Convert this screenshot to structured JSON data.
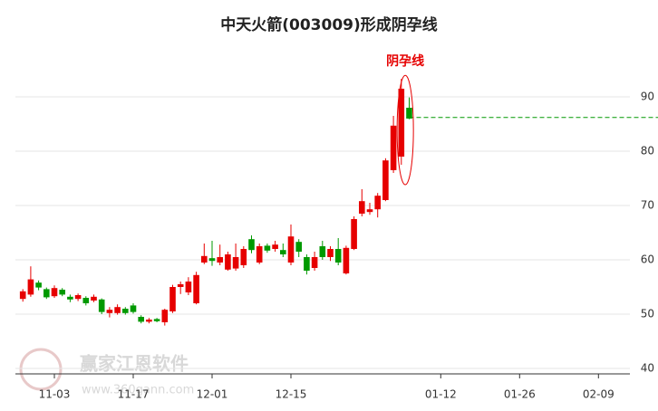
{
  "chart_data": {
    "type": "candlestick",
    "title": "中天火箭(003009)形成阴孕线",
    "categories": [
      null,
      null,
      null,
      null,
      "11-03",
      null,
      null,
      null,
      null,
      null,
      null,
      null,
      null,
      null,
      "11-17",
      null,
      null,
      null,
      null,
      null,
      null,
      null,
      null,
      null,
      "12-01",
      null,
      null,
      null,
      null,
      null,
      null,
      null,
      null,
      null,
      "12-15",
      null,
      null,
      null,
      null,
      null,
      null,
      null,
      null,
      null,
      null,
      null,
      null,
      null,
      null,
      null,
      null,
      null,
      null,
      "01-12",
      null,
      null,
      null,
      null,
      null,
      null,
      null,
      null,
      null,
      "01-26",
      null,
      null,
      null,
      null,
      null,
      null,
      null,
      null,
      null,
      "02-09",
      null,
      null,
      null
    ],
    "open": [
      52.8,
      53.6,
      55.8,
      54.6,
      53.3,
      54.5,
      53.2,
      52.8,
      53.0,
      52.5,
      52.7,
      50.2,
      50.2,
      51.0,
      51.6,
      49.5,
      48.6,
      49.1,
      48.5,
      50.5,
      55.0,
      54.0,
      52.0,
      59.5,
      60.3,
      59.5,
      58.2,
      58.4,
      59.0,
      63.8,
      59.5,
      62.6,
      62.0,
      61.8,
      59.5,
      63.3,
      60.5,
      58.5,
      62.5,
      60.5,
      62.0,
      57.5,
      62.0,
      68.5,
      68.8,
      69.3,
      71.0,
      76.5,
      79.0,
      88.0,
      null,
      null,
      null,
      null,
      null,
      null,
      null,
      null,
      null,
      null,
      null,
      null,
      null,
      null,
      null,
      null,
      null,
      null,
      null,
      null,
      null,
      null,
      null,
      null,
      null,
      null,
      null
    ],
    "high": [
      54.6,
      58.8,
      56.2,
      54.9,
      55.3,
      54.8,
      53.6,
      53.8,
      53.3,
      53.6,
      52.9,
      51.3,
      51.8,
      51.3,
      52.0,
      49.8,
      49.3,
      49.3,
      51.0,
      55.4,
      56.0,
      56.8,
      57.8,
      63.0,
      63.5,
      62.8,
      61.5,
      63.0,
      62.5,
      64.5,
      63.0,
      63.0,
      63.5,
      63.0,
      66.5,
      63.8,
      61.0,
      61.5,
      63.5,
      62.5,
      64.0,
      62.6,
      68.0,
      73.0,
      70.5,
      72.3,
      78.7,
      86.5,
      93.3,
      89.9,
      null,
      null,
      null,
      null,
      null,
      null,
      null,
      null,
      null,
      null,
      null,
      null,
      null,
      null,
      null,
      null,
      null,
      null,
      null,
      null,
      null,
      null,
      null,
      null,
      null,
      null,
      null
    ],
    "low": [
      52.3,
      53.2,
      54.4,
      52.8,
      53.0,
      53.3,
      52.2,
      52.4,
      51.6,
      52.2,
      50.0,
      49.4,
      49.9,
      49.9,
      50.1,
      48.3,
      48.3,
      48.5,
      47.9,
      50.2,
      53.7,
      53.5,
      51.8,
      59.2,
      58.9,
      59.0,
      58.0,
      58.0,
      58.5,
      61.2,
      59.2,
      61.3,
      61.5,
      60.5,
      59.0,
      60.5,
      57.3,
      58.0,
      60.0,
      59.8,
      59.0,
      57.3,
      61.8,
      68.0,
      68.3,
      67.8,
      70.8,
      76.0,
      77.5,
      85.9,
      null,
      null,
      null,
      null,
      null,
      null,
      null,
      null,
      null,
      null,
      null,
      null,
      null,
      null,
      null,
      null,
      null,
      null,
      null,
      null,
      null,
      null,
      null,
      null,
      null,
      null,
      null
    ],
    "close": [
      54.2,
      56.4,
      54.9,
      53.1,
      54.8,
      53.6,
      52.7,
      53.5,
      52.0,
      53.2,
      50.4,
      50.8,
      51.3,
      50.2,
      50.4,
      48.6,
      49.0,
      48.7,
      50.8,
      55.0,
      55.5,
      56.0,
      57.2,
      60.7,
      59.8,
      60.5,
      61.0,
      60.5,
      62.0,
      61.8,
      62.5,
      61.7,
      62.8,
      61.0,
      64.3,
      61.5,
      58.0,
      60.5,
      60.5,
      62.0,
      59.5,
      62.2,
      67.5,
      70.8,
      69.3,
      71.8,
      78.3,
      84.7,
      91.5,
      86.0,
      null,
      null,
      null,
      null,
      null,
      null,
      null,
      null,
      null,
      null,
      null,
      null,
      null,
      null,
      null,
      null,
      null,
      null,
      null,
      null,
      null,
      null,
      null,
      null,
      null,
      null,
      null
    ],
    "up_color": "#e60000",
    "down_color": "#009900",
    "ylim": [
      39,
      99
    ],
    "yticks": [
      40,
      50,
      60,
      70,
      80,
      90
    ],
    "grid": true,
    "reference_line": {
      "value": 86.2,
      "color": "#009900"
    },
    "annotation": {
      "text": "阴孕线",
      "color": "#e60000"
    },
    "watermark": [
      "赢家江恩软件",
      "www.360gann.com"
    ]
  }
}
